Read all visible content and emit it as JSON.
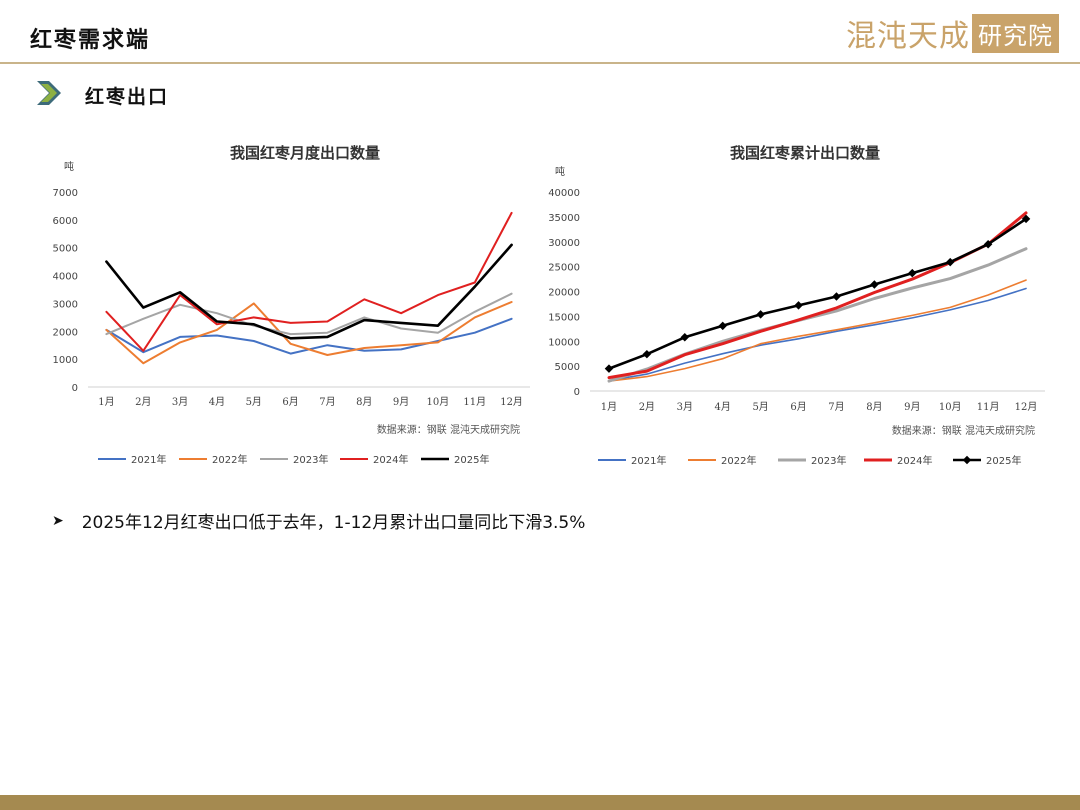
{
  "header": {
    "title": "红枣需求端",
    "logo_text": "混沌天成",
    "logo_box_text": "研究院"
  },
  "section": {
    "title": "红枣出口"
  },
  "bullet": {
    "text": "2025年12月红枣出口低于去年，1-12月累计出口量同比下滑3.5%"
  },
  "colors": {
    "2021年": "#4472c4",
    "2022年": "#ed7d31",
    "2023年": "#a5a5a5",
    "2024年": "#e02020",
    "2025年": "#000000",
    "accent": "#c9a36a",
    "footer": "#a58a50"
  },
  "chart_data": [
    {
      "type": "line",
      "title": "我国红枣月度出口数量",
      "ylabel": "吨",
      "source": "数据来源：钢联   混沌天成研究院",
      "ylim": [
        0,
        7000
      ],
      "yticks": [
        0,
        1000,
        2000,
        3000,
        4000,
        5000,
        6000,
        7000
      ],
      "categories": [
        "1月",
        "2月",
        "3月",
        "4月",
        "5月",
        "6月",
        "7月",
        "8月",
        "9月",
        "10月",
        "11月",
        "12月"
      ],
      "series": [
        {
          "name": "2021年",
          "values": [
            2050,
            1250,
            1800,
            1850,
            1650,
            1200,
            1500,
            1300,
            1350,
            1650,
            1950,
            2450
          ]
        },
        {
          "name": "2022年",
          "values": [
            2050,
            850,
            1600,
            2050,
            3000,
            1550,
            1150,
            1400,
            1500,
            1600,
            2500,
            3050
          ]
        },
        {
          "name": "2023年",
          "values": [
            1900,
            2450,
            2950,
            2650,
            2200,
            1900,
            1950,
            2500,
            2100,
            1950,
            2700,
            3350
          ]
        },
        {
          "name": "2024年",
          "values": [
            2700,
            1300,
            3300,
            2250,
            2500,
            2300,
            2350,
            3150,
            2650,
            3300,
            3750,
            6250
          ]
        },
        {
          "name": "2025年",
          "values": [
            4500,
            2850,
            3400,
            2350,
            2250,
            1750,
            1800,
            2400,
            2300,
            2200,
            3600,
            5100
          ]
        }
      ]
    },
    {
      "type": "line",
      "title": "我国红枣累计出口数量",
      "ylabel": "吨",
      "source": "数据来源：钢联   混沌天成研究院",
      "ylim": [
        0,
        40000
      ],
      "yticks": [
        0,
        5000,
        10000,
        15000,
        20000,
        25000,
        30000,
        35000,
        40000
      ],
      "categories": [
        "1月",
        "2月",
        "3月",
        "4月",
        "5月",
        "6月",
        "7月",
        "8月",
        "9月",
        "10月",
        "11月",
        "12月"
      ],
      "series": [
        {
          "name": "2021年",
          "values": [
            2100,
            3400,
            5600,
            7500,
            9200,
            10500,
            12000,
            13300,
            14700,
            16300,
            18200,
            20600
          ]
        },
        {
          "name": "2022年",
          "values": [
            2000,
            2900,
            4500,
            6500,
            9500,
            11000,
            12300,
            13700,
            15200,
            16800,
            19300,
            22300
          ]
        },
        {
          "name": "2023年",
          "values": [
            2000,
            4400,
            7400,
            10000,
            12200,
            14200,
            16100,
            18600,
            20700,
            22600,
            25300,
            28600
          ]
        },
        {
          "name": "2024年",
          "values": [
            2700,
            4000,
            7300,
            9500,
            12000,
            14300,
            16700,
            19800,
            22500,
            25800,
            29500,
            35800
          ]
        },
        {
          "name": "2025年",
          "values": [
            4500,
            7400,
            10800,
            13100,
            15400,
            17200,
            19000,
            21400,
            23700,
            25900,
            29500,
            34600
          ]
        }
      ]
    }
  ]
}
